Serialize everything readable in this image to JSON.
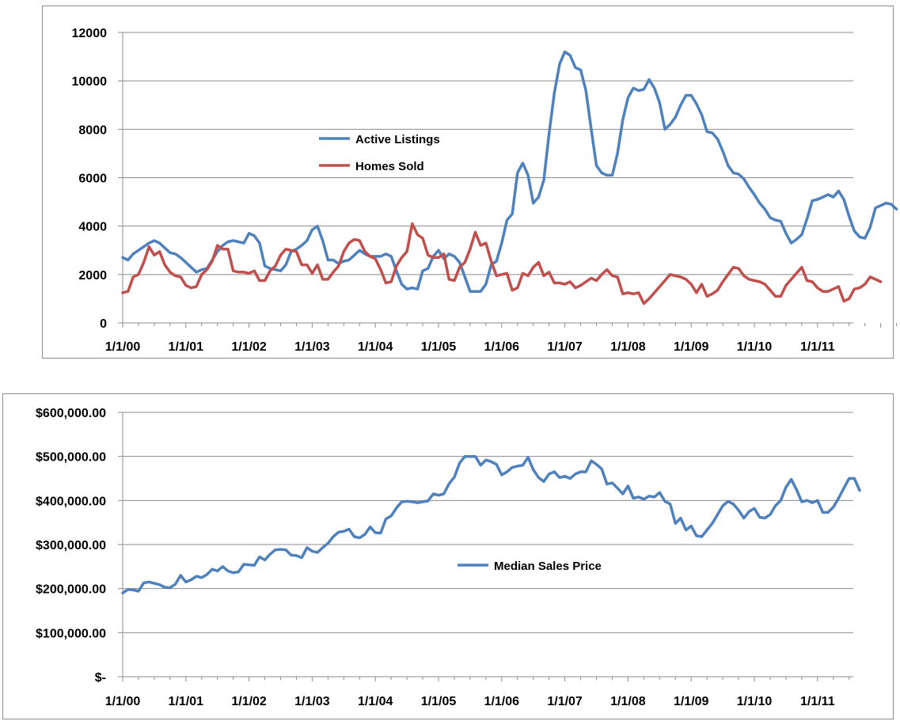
{
  "chart_data": [
    {
      "type": "line",
      "title": "",
      "xlabel": "",
      "ylabel": "",
      "x_ticks": [
        "1/1/00",
        "1/1/01",
        "1/1/02",
        "1/1/03",
        "1/1/04",
        "1/1/05",
        "1/1/06",
        "1/1/07",
        "1/1/08",
        "1/1/09",
        "1/1/10",
        "1/1/11"
      ],
      "x_start": "2000-01",
      "ylim": [
        0,
        12000
      ],
      "y_ticks": [
        "0",
        "2000",
        "4000",
        "6000",
        "8000",
        "10000",
        "12000"
      ],
      "y_tick_values": [
        0,
        2000,
        4000,
        6000,
        8000,
        10000,
        12000
      ],
      "grid": true,
      "legend": "center-left",
      "series": [
        {
          "name": "Active Listings",
          "color": "#4f81bd",
          "values": [
            2700,
            2600,
            2850,
            3000,
            3150,
            3300,
            3400,
            3300,
            3100,
            2900,
            2850,
            2700,
            2500,
            2300,
            2100,
            2200,
            2250,
            2600,
            2950,
            3200,
            3350,
            3400,
            3350,
            3300,
            3700,
            3600,
            3300,
            2350,
            2250,
            2200,
            2150,
            2400,
            2950,
            3050,
            3200,
            3400,
            3850,
            4000,
            3400,
            2600,
            2600,
            2450,
            2550,
            2600,
            2800,
            3000,
            2850,
            2750,
            2750,
            2750,
            2850,
            2750,
            2150,
            1600,
            1400,
            1450,
            1400,
            2150,
            2250,
            2750,
            3000,
            2650,
            2850,
            2750,
            2500,
            1900,
            1300,
            1300,
            1300,
            1600,
            2400,
            2550,
            3300,
            4250,
            4500,
            6200,
            6600,
            6100,
            4950,
            5200,
            5900,
            7800,
            9500,
            10700,
            11200,
            11050,
            10550,
            10450,
            9600,
            8000,
            6500,
            6200,
            6100,
            6100,
            7000,
            8400,
            9300,
            9700,
            9600,
            9650,
            10050,
            9700,
            9100,
            8000,
            8200,
            8500,
            9000,
            9400,
            9400,
            9050,
            8600,
            7900,
            7850,
            7600,
            7100,
            6500,
            6200,
            6150,
            5950,
            5600,
            5300,
            4950,
            4700,
            4350,
            4250,
            4200,
            3700,
            3300,
            3450,
            3650,
            4300,
            5050,
            5100,
            5200,
            5300,
            5200,
            5450,
            5100,
            4400,
            3800,
            3550,
            3500,
            3950,
            4750,
            4850,
            4950,
            4900,
            4700
          ]
        },
        {
          "name": "Homes Sold",
          "color": "#c0504d",
          "values": [
            1250,
            1300,
            1900,
            2000,
            2500,
            3150,
            2800,
            2950,
            2400,
            2100,
            1950,
            1900,
            1550,
            1450,
            1500,
            2000,
            2200,
            2550,
            3200,
            3050,
            3050,
            2150,
            2100,
            2100,
            2050,
            2150,
            1750,
            1750,
            2150,
            2350,
            2800,
            3050,
            3000,
            2950,
            2400,
            2400,
            2050,
            2400,
            1800,
            1800,
            2100,
            2350,
            2950,
            3300,
            3450,
            3400,
            2950,
            2750,
            2650,
            2200,
            1650,
            1700,
            2350,
            2700,
            2950,
            4100,
            3650,
            3500,
            2800,
            2700,
            2700,
            2850,
            1800,
            1750,
            2300,
            2500,
            3050,
            3750,
            3200,
            3300,
            2550,
            1950,
            2000,
            2050,
            1350,
            1450,
            2050,
            1950,
            2300,
            2500,
            1950,
            2100,
            1650,
            1650,
            1600,
            1700,
            1450,
            1550,
            1700,
            1850,
            1750,
            2000,
            2200,
            1950,
            1900,
            1200,
            1250,
            1200,
            1250,
            800,
            1000,
            1250,
            1500,
            1750,
            2000,
            1950,
            1900,
            1800,
            1600,
            1250,
            1600,
            1100,
            1200,
            1350,
            1700,
            2000,
            2300,
            2250,
            1950,
            1800,
            1750,
            1700,
            1600,
            1350,
            1100,
            1100,
            1550,
            1800,
            2050,
            2300,
            1750,
            1700,
            1450,
            1300,
            1300,
            1400,
            1500,
            900,
            1000,
            1400,
            1450,
            1600,
            1900,
            1800,
            1700
          ]
        }
      ]
    },
    {
      "type": "line",
      "title": "",
      "xlabel": "",
      "ylabel": "",
      "x_ticks": [
        "1/1/00",
        "1/1/01",
        "1/1/02",
        "1/1/03",
        "1/1/04",
        "1/1/05",
        "1/1/06",
        "1/1/07",
        "1/1/08",
        "1/1/09",
        "1/1/10",
        "1/1/11"
      ],
      "x_start": "2000-01",
      "ylim": [
        0,
        600000
      ],
      "y_ticks": [
        "$-",
        "$100,000.00",
        "$200,000.00",
        "$300,000.00",
        "$400,000.00",
        "$500,000.00",
        "$600,000.00"
      ],
      "y_tick_values": [
        0,
        100000,
        200000,
        300000,
        400000,
        500000,
        600000
      ],
      "grid": true,
      "legend": "center-right",
      "series": [
        {
          "name": "Median Sales Price",
          "color": "#4f81bd",
          "values": [
            190000,
            198000,
            197000,
            194000,
            213000,
            215000,
            212000,
            209000,
            203000,
            202000,
            210000,
            230000,
            215000,
            220000,
            228000,
            225000,
            232000,
            244000,
            240000,
            250000,
            240000,
            236000,
            238000,
            255000,
            254000,
            253000,
            272000,
            265000,
            278000,
            288000,
            289000,
            288000,
            276000,
            275000,
            270000,
            293000,
            285000,
            282000,
            293000,
            303000,
            318000,
            328000,
            330000,
            335000,
            318000,
            315000,
            323000,
            340000,
            327000,
            326000,
            358000,
            365000,
            383000,
            397000,
            398000,
            397000,
            395000,
            397000,
            399000,
            415000,
            412000,
            415000,
            438000,
            453000,
            485000,
            500000,
            500000,
            500000,
            480000,
            492000,
            488000,
            482000,
            458000,
            465000,
            475000,
            478000,
            480000,
            498000,
            470000,
            452000,
            443000,
            460000,
            465000,
            452000,
            455000,
            450000,
            460000,
            465000,
            465000,
            490000,
            482000,
            472000,
            437000,
            440000,
            428000,
            415000,
            433000,
            405000,
            408000,
            403000,
            410000,
            408000,
            418000,
            398000,
            392000,
            348000,
            360000,
            333000,
            342000,
            320000,
            318000,
            333000,
            348000,
            368000,
            388000,
            398000,
            392000,
            378000,
            360000,
            375000,
            382000,
            362000,
            360000,
            368000,
            388000,
            400000,
            430000,
            448000,
            425000,
            397000,
            400000,
            395000,
            400000,
            373000,
            373000,
            385000,
            405000,
            428000,
            450000,
            450000,
            423000
          ]
        }
      ]
    }
  ]
}
